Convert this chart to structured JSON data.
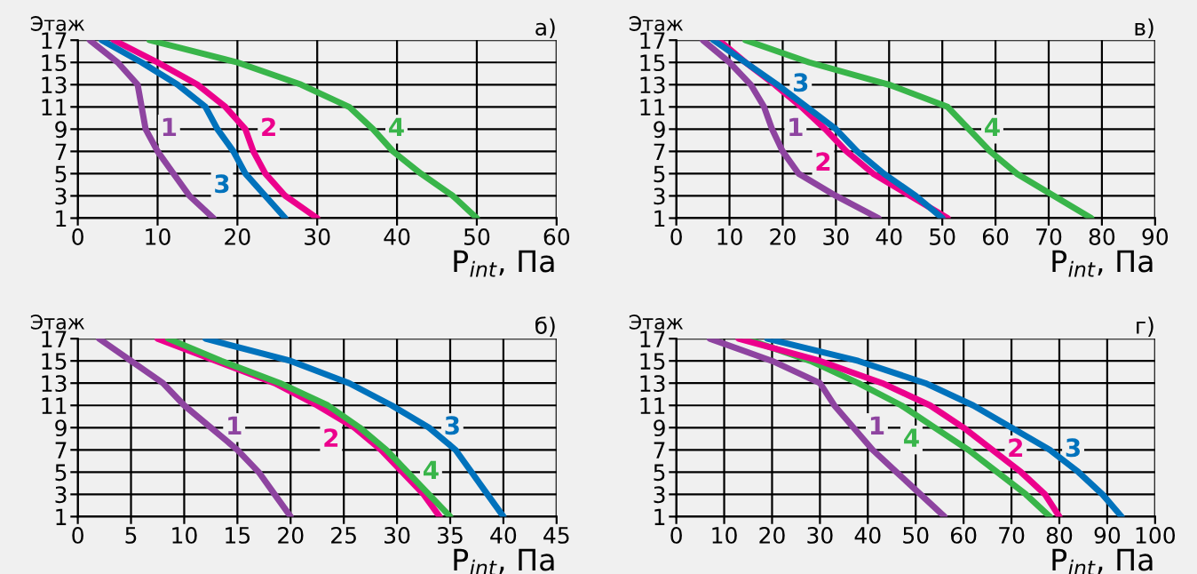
{
  "chart_data": [
    {
      "type": "line",
      "title": "а)",
      "xlabel": "P$_{int}$, Па",
      "ylabel": "Этаж",
      "xlim": [
        0,
        60
      ],
      "xticks": [
        0,
        10,
        20,
        30,
        40,
        50,
        60
      ],
      "ylim": [
        1,
        17
      ],
      "yticks": [
        1,
        3,
        5,
        7,
        9,
        11,
        13,
        15,
        17
      ],
      "grid": true,
      "line_style": "solid",
      "marker": "none",
      "series": [
        {
          "name": "1",
          "color": "#8e44a0",
          "x": [
            1.5,
            5,
            7.5,
            8,
            8.5,
            10,
            12,
            14,
            17
          ],
          "values": [
            17,
            15,
            13,
            11,
            9,
            7,
            5,
            3,
            1
          ]
        },
        {
          "name": "2",
          "color": "#ec008c",
          "x": [
            4.5,
            10,
            15,
            18.5,
            21,
            22,
            23.5,
            26,
            30
          ],
          "values": [
            17,
            15,
            13,
            11,
            9,
            7,
            5,
            3,
            1
          ]
        },
        {
          "name": "3",
          "color": "#0072bc",
          "x": [
            3,
            8,
            12.5,
            16,
            17.5,
            19.5,
            21,
            23.5,
            26
          ],
          "values": [
            17,
            15,
            13,
            11,
            9,
            7,
            5,
            3,
            1
          ]
        },
        {
          "name": "4",
          "color": "#39b54a",
          "x": [
            9,
            20,
            28,
            34,
            37,
            39.5,
            43,
            47,
            50
          ],
          "values": [
            17,
            15,
            13,
            11,
            9,
            7,
            5,
            3,
            1
          ]
        }
      ]
    },
    {
      "type": "line",
      "title": "в)",
      "xlabel": "P$_{int}$, Па",
      "ylabel": "Этаж",
      "xlim": [
        0,
        90
      ],
      "xticks": [
        0,
        10,
        20,
        30,
        40,
        50,
        60,
        70,
        80,
        90
      ],
      "ylim": [
        1,
        17
      ],
      "yticks": [
        1,
        3,
        5,
        7,
        9,
        11,
        13,
        15,
        17
      ],
      "grid": true,
      "line_style": "solid",
      "marker": "none",
      "series": [
        {
          "name": "1",
          "color": "#8e44a0",
          "x": [
            5,
            10,
            14,
            16.5,
            18,
            20,
            23,
            30,
            38
          ],
          "values": [
            17,
            15,
            13,
            11,
            9,
            7,
            5,
            3,
            1
          ]
        },
        {
          "name": "2",
          "color": "#ec008c",
          "x": [
            8,
            13,
            18.5,
            23.5,
            28,
            32,
            37,
            44,
            51
          ],
          "values": [
            17,
            15,
            13,
            11,
            9,
            7,
            5,
            3,
            1
          ]
        },
        {
          "name": "3",
          "color": "#0072bc",
          "x": [
            7,
            13,
            19,
            24.5,
            30,
            34,
            39,
            45,
            50
          ],
          "values": [
            17,
            15,
            13,
            11,
            9,
            7,
            5,
            3,
            1
          ]
        },
        {
          "name": "4",
          "color": "#39b54a",
          "x": [
            13,
            25,
            40,
            51,
            55,
            59,
            64,
            71,
            78
          ],
          "values": [
            17,
            15,
            13,
            11,
            9,
            7,
            5,
            3,
            1
          ]
        }
      ]
    },
    {
      "type": "line",
      "title": "б)",
      "xlabel": "P$_{int}$, Па",
      "ylabel": "Этаж",
      "xlim": [
        0,
        45
      ],
      "xticks": [
        0,
        5,
        10,
        15,
        20,
        25,
        30,
        35,
        40,
        45
      ],
      "ylim": [
        1,
        17
      ],
      "yticks": [
        1,
        3,
        5,
        7,
        9,
        11,
        13,
        15,
        17
      ],
      "grid": true,
      "line_style": "solid",
      "marker": "none",
      "series": [
        {
          "name": "1",
          "color": "#8e44a0",
          "x": [
            2,
            5,
            8,
            10,
            12.5,
            15,
            17,
            18.5,
            20
          ],
          "values": [
            17,
            15,
            13,
            11,
            9,
            7,
            5,
            3,
            1
          ]
        },
        {
          "name": "2",
          "color": "#ec008c",
          "x": [
            7.5,
            13,
            18.5,
            22.5,
            26,
            28.5,
            30.5,
            32.5,
            34
          ],
          "values": [
            17,
            15,
            13,
            11,
            9,
            7,
            5,
            3,
            1
          ]
        },
        {
          "name": "4",
          "color": "#39b54a",
          "x": [
            8.5,
            13.5,
            19,
            23.5,
            26.5,
            29,
            31,
            33,
            35
          ],
          "values": [
            17,
            15,
            13,
            11,
            9,
            7,
            5,
            3,
            1
          ]
        },
        {
          "name": "3",
          "color": "#0072bc",
          "x": [
            12,
            20,
            25.5,
            29.5,
            33,
            35.5,
            37,
            38.5,
            40
          ],
          "values": [
            17,
            15,
            13,
            11,
            9,
            7,
            5,
            3,
            1
          ]
        }
      ]
    },
    {
      "type": "line",
      "title": "г)",
      "xlabel": "P$_{int}$, Па",
      "ylabel": "Этаж",
      "xlim": [
        0,
        100
      ],
      "xticks": [
        0,
        10,
        20,
        30,
        40,
        50,
        60,
        70,
        80,
        90,
        100
      ],
      "ylim": [
        1,
        17
      ],
      "yticks": [
        1,
        3,
        5,
        7,
        9,
        11,
        13,
        15,
        17
      ],
      "grid": true,
      "line_style": "solid",
      "marker": "none",
      "series": [
        {
          "name": "1",
          "color": "#8e44a0",
          "x": [
            7,
            20,
            30,
            33,
            37,
            41,
            46,
            51,
            56
          ],
          "values": [
            17,
            15,
            13,
            11,
            9,
            7,
            5,
            3,
            1
          ]
        },
        {
          "name": "4",
          "color": "#39b54a",
          "x": [
            14.5,
            28,
            38,
            47,
            54,
            61,
            67,
            73,
            78
          ],
          "values": [
            17,
            15,
            13,
            11,
            9,
            7,
            5,
            3,
            1
          ]
        },
        {
          "name": "2",
          "color": "#ec008c",
          "x": [
            13,
            30,
            43,
            53,
            60,
            66,
            72,
            77,
            80
          ],
          "values": [
            17,
            15,
            13,
            11,
            9,
            7,
            5,
            3,
            1
          ]
        },
        {
          "name": "3",
          "color": "#0072bc",
          "x": [
            19,
            38,
            52,
            62,
            70,
            78,
            84,
            89,
            93
          ],
          "values": [
            17,
            15,
            13,
            11,
            9,
            7,
            5,
            3,
            1
          ]
        }
      ]
    }
  ]
}
